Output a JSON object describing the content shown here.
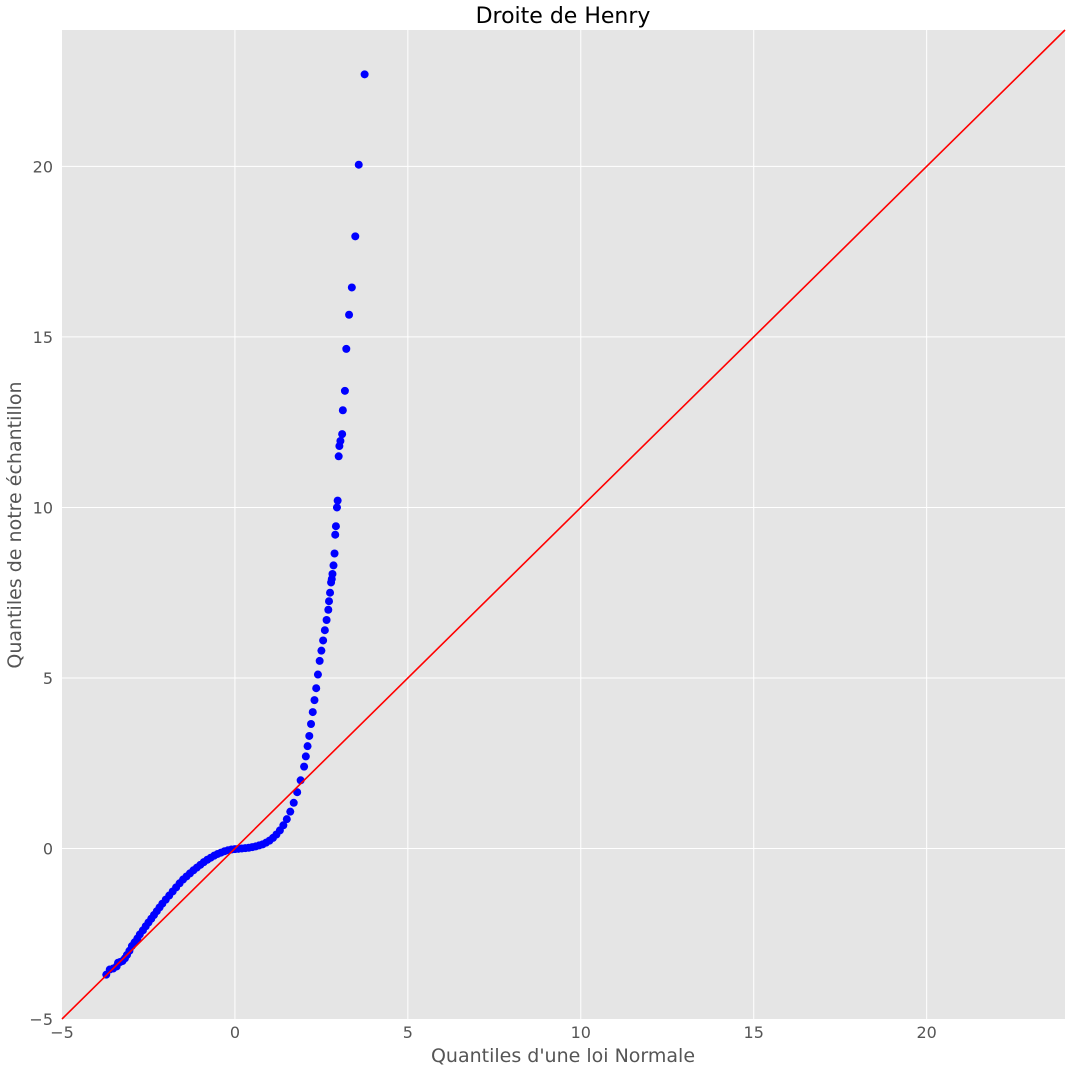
{
  "chart_data": {
    "type": "scatter",
    "title": "Droite de Henry",
    "xlabel": "Quantiles d'une loi Normale",
    "ylabel": "Quantiles de notre échantillon",
    "xlim": [
      -5,
      24
    ],
    "ylim": [
      -5,
      24
    ],
    "xticks": [
      -5,
      0,
      5,
      10,
      15,
      20
    ],
    "yticks": [
      -5,
      0,
      5,
      10,
      15,
      20
    ],
    "grid": true,
    "background": "#e5e5e5",
    "grid_color": "#ffffff",
    "point_color": "#0000ff",
    "line_color": "#ff0000",
    "reference_line": {
      "x": [
        -5,
        24
      ],
      "y": [
        -5,
        24
      ]
    },
    "series": [
      {
        "values_xy": [
          [
            -3.72,
            -3.7
          ],
          [
            -3.62,
            -3.55
          ],
          [
            -3.52,
            -3.52
          ],
          [
            -3.42,
            -3.46
          ],
          [
            -3.38,
            -3.35
          ],
          [
            -3.32,
            -3.33
          ],
          [
            -3.25,
            -3.3
          ],
          [
            -3.18,
            -3.22
          ],
          [
            -3.12,
            -3.12
          ],
          [
            -3.05,
            -3.0
          ],
          [
            -2.98,
            -2.86
          ],
          [
            -2.9,
            -2.75
          ],
          [
            -2.82,
            -2.64
          ],
          [
            -2.75,
            -2.52
          ],
          [
            -2.66,
            -2.4
          ],
          [
            -2.58,
            -2.28
          ],
          [
            -2.5,
            -2.17
          ],
          [
            -2.42,
            -2.06
          ],
          [
            -2.34,
            -1.95
          ],
          [
            -2.26,
            -1.84
          ],
          [
            -2.18,
            -1.73
          ],
          [
            -2.1,
            -1.62
          ],
          [
            -2.0,
            -1.5
          ],
          [
            -1.9,
            -1.38
          ],
          [
            -1.8,
            -1.26
          ],
          [
            -1.7,
            -1.14
          ],
          [
            -1.6,
            -1.02
          ],
          [
            -1.5,
            -0.91
          ],
          [
            -1.4,
            -0.82
          ],
          [
            -1.3,
            -0.73
          ],
          [
            -1.2,
            -0.64
          ],
          [
            -1.1,
            -0.56
          ],
          [
            -1.0,
            -0.48
          ],
          [
            -0.9,
            -0.4
          ],
          [
            -0.8,
            -0.33
          ],
          [
            -0.7,
            -0.27
          ],
          [
            -0.6,
            -0.21
          ],
          [
            -0.5,
            -0.16
          ],
          [
            -0.4,
            -0.12
          ],
          [
            -0.3,
            -0.08
          ],
          [
            -0.2,
            -0.05
          ],
          [
            -0.1,
            -0.03
          ],
          [
            0.0,
            -0.02
          ],
          [
            0.1,
            -0.01
          ],
          [
            0.2,
            0.0
          ],
          [
            0.3,
            0.01
          ],
          [
            0.4,
            0.02
          ],
          [
            0.5,
            0.04
          ],
          [
            0.6,
            0.06
          ],
          [
            0.7,
            0.09
          ],
          [
            0.8,
            0.12
          ],
          [
            0.9,
            0.17
          ],
          [
            1.0,
            0.23
          ],
          [
            1.1,
            0.31
          ],
          [
            1.2,
            0.41
          ],
          [
            1.3,
            0.53
          ],
          [
            1.4,
            0.68
          ],
          [
            1.5,
            0.86
          ],
          [
            1.6,
            1.08
          ],
          [
            1.7,
            1.34
          ],
          [
            1.8,
            1.65
          ],
          [
            1.9,
            2.0
          ],
          [
            2.0,
            2.4
          ],
          [
            2.05,
            2.7
          ],
          [
            2.1,
            3.0
          ],
          [
            2.15,
            3.3
          ],
          [
            2.2,
            3.65
          ],
          [
            2.25,
            4.0
          ],
          [
            2.3,
            4.35
          ],
          [
            2.35,
            4.7
          ],
          [
            2.4,
            5.1
          ],
          [
            2.45,
            5.5
          ],
          [
            2.5,
            5.8
          ],
          [
            2.55,
            6.1
          ],
          [
            2.6,
            6.4
          ],
          [
            2.65,
            6.7
          ],
          [
            2.7,
            7.0
          ],
          [
            2.72,
            7.25
          ],
          [
            2.75,
            7.5
          ],
          [
            2.78,
            7.8
          ],
          [
            2.8,
            7.9
          ],
          [
            2.82,
            8.05
          ],
          [
            2.85,
            8.3
          ],
          [
            2.88,
            8.65
          ],
          [
            2.9,
            9.2
          ],
          [
            2.92,
            9.45
          ],
          [
            2.95,
            10.0
          ],
          [
            2.97,
            10.2
          ],
          [
            3.0,
            11.5
          ],
          [
            3.02,
            11.8
          ],
          [
            3.05,
            11.95
          ],
          [
            3.1,
            12.15
          ],
          [
            3.12,
            12.85
          ],
          [
            3.18,
            13.42
          ],
          [
            3.22,
            14.65
          ],
          [
            3.3,
            15.65
          ],
          [
            3.38,
            16.45
          ],
          [
            3.48,
            17.95
          ],
          [
            3.58,
            20.05
          ],
          [
            3.75,
            22.7
          ]
        ]
      }
    ]
  }
}
